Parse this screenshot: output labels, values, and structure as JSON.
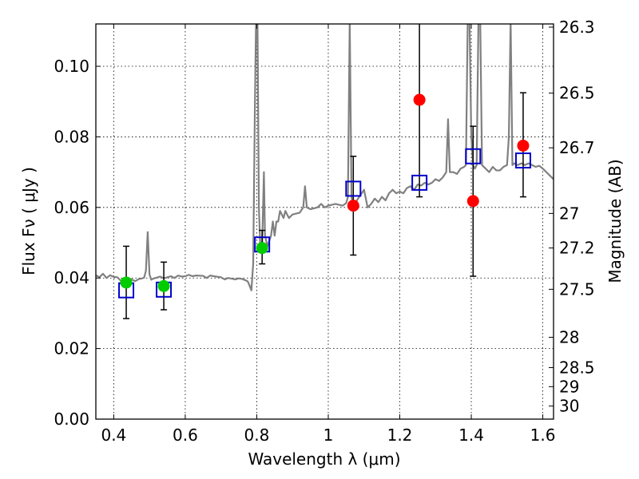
{
  "chart_data": {
    "type": "scatter",
    "xlabel": "Wavelength  λ (μm)",
    "ylabel": "Flux  Fν  ( μJy )",
    "y2label": "Magnitude (AB)",
    "xlim": [
      0.35,
      1.63
    ],
    "ylim": [
      0.0,
      0.112
    ],
    "grid": true,
    "x_ticks": [
      0.4,
      0.6,
      0.8,
      1.0,
      1.2,
      1.4,
      1.6
    ],
    "x_tick_labels": [
      "0.4",
      "0.6",
      "0.8",
      "1",
      "1.2",
      "1.4",
      "1.6"
    ],
    "y_ticks": [
      0.0,
      0.02,
      0.04,
      0.06,
      0.08,
      0.1
    ],
    "y_tick_labels": [
      "0.00",
      "0.02",
      "0.04",
      "0.06",
      "0.08",
      "0.10"
    ],
    "y2_ticks": [
      {
        "label": "26.3",
        "flux": 0.1111
      },
      {
        "label": "26.5",
        "flux": 0.0924
      },
      {
        "label": "26.7",
        "flux": 0.0769
      },
      {
        "label": "27",
        "flux": 0.0583
      },
      {
        "label": "27.2",
        "flux": 0.0485
      },
      {
        "label": "27.5",
        "flux": 0.0368
      },
      {
        "label": "28",
        "flux": 0.0232
      },
      {
        "label": "28.5",
        "flux": 0.0146
      },
      {
        "label": "29",
        "flux": 0.0092
      },
      {
        "label": "30",
        "flux": 0.0037
      }
    ],
    "series": [
      {
        "kind": "line",
        "color": "#808080",
        "points": [
          [
            0.35,
            0.0408
          ],
          [
            0.36,
            0.0402
          ],
          [
            0.37,
            0.0412
          ],
          [
            0.38,
            0.04
          ],
          [
            0.39,
            0.0408
          ],
          [
            0.4,
            0.0403
          ],
          [
            0.41,
            0.0402
          ],
          [
            0.42,
            0.0392
          ],
          [
            0.43,
            0.0397
          ],
          [
            0.44,
            0.04
          ],
          [
            0.45,
            0.0396
          ],
          [
            0.46,
            0.0391
          ],
          [
            0.47,
            0.0397
          ],
          [
            0.48,
            0.0399
          ],
          [
            0.485,
            0.0401
          ],
          [
            0.49,
            0.042
          ],
          [
            0.495,
            0.053
          ],
          [
            0.5,
            0.041
          ],
          [
            0.505,
            0.0395
          ],
          [
            0.51,
            0.0398
          ],
          [
            0.52,
            0.0401
          ],
          [
            0.53,
            0.0404
          ],
          [
            0.54,
            0.0399
          ],
          [
            0.55,
            0.0402
          ],
          [
            0.56,
            0.0405
          ],
          [
            0.57,
            0.04
          ],
          [
            0.58,
            0.0407
          ],
          [
            0.59,
            0.0404
          ],
          [
            0.6,
            0.0405
          ],
          [
            0.61,
            0.0409
          ],
          [
            0.62,
            0.0405
          ],
          [
            0.63,
            0.0407
          ],
          [
            0.65,
            0.0406
          ],
          [
            0.66,
            0.04
          ],
          [
            0.67,
            0.0407
          ],
          [
            0.68,
            0.0405
          ],
          [
            0.7,
            0.0402
          ],
          [
            0.71,
            0.0396
          ],
          [
            0.72,
            0.04
          ],
          [
            0.73,
            0.0398
          ],
          [
            0.74,
            0.0396
          ],
          [
            0.75,
            0.0399
          ],
          [
            0.76,
            0.0397
          ],
          [
            0.77,
            0.0393
          ],
          [
            0.775,
            0.039
          ],
          [
            0.78,
            0.0378
          ],
          [
            0.785,
            0.0365
          ],
          [
            0.79,
            0.044
          ],
          [
            0.795,
            0.09
          ],
          [
            0.798,
            0.113
          ],
          [
            0.802,
            0.113
          ],
          [
            0.806,
            0.06
          ],
          [
            0.81,
            0.048
          ],
          [
            0.815,
            0.049
          ],
          [
            0.82,
            0.07
          ],
          [
            0.823,
            0.052
          ],
          [
            0.83,
            0.049
          ],
          [
            0.84,
            0.052
          ],
          [
            0.845,
            0.056
          ],
          [
            0.85,
            0.052
          ],
          [
            0.855,
            0.056
          ],
          [
            0.86,
            0.056
          ],
          [
            0.865,
            0.059
          ],
          [
            0.87,
            0.058
          ],
          [
            0.875,
            0.057
          ],
          [
            0.88,
            0.059
          ],
          [
            0.89,
            0.057
          ],
          [
            0.9,
            0.058
          ],
          [
            0.92,
            0.0585
          ],
          [
            0.93,
            0.06
          ],
          [
            0.935,
            0.066
          ],
          [
            0.94,
            0.06
          ],
          [
            0.95,
            0.0595
          ],
          [
            0.97,
            0.06
          ],
          [
            0.98,
            0.061
          ],
          [
            0.99,
            0.06
          ],
          [
            1.0,
            0.0605
          ],
          [
            1.02,
            0.061
          ],
          [
            1.04,
            0.0605
          ],
          [
            1.05,
            0.0612
          ],
          [
            1.055,
            0.063
          ],
          [
            1.06,
            0.113
          ],
          [
            1.065,
            0.063
          ],
          [
            1.07,
            0.06
          ],
          [
            1.08,
            0.062
          ],
          [
            1.09,
            0.0635
          ],
          [
            1.1,
            0.065
          ],
          [
            1.11,
            0.06
          ],
          [
            1.12,
            0.061
          ],
          [
            1.13,
            0.0625
          ],
          [
            1.14,
            0.0615
          ],
          [
            1.15,
            0.063
          ],
          [
            1.16,
            0.062
          ],
          [
            1.17,
            0.064
          ],
          [
            1.18,
            0.065
          ],
          [
            1.19,
            0.064
          ],
          [
            1.2,
            0.0645
          ],
          [
            1.21,
            0.064
          ],
          [
            1.22,
            0.0655
          ],
          [
            1.23,
            0.066
          ],
          [
            1.24,
            0.065
          ],
          [
            1.25,
            0.0665
          ],
          [
            1.26,
            0.0662
          ],
          [
            1.27,
            0.067
          ],
          [
            1.28,
            0.0665
          ],
          [
            1.29,
            0.067
          ],
          [
            1.3,
            0.068
          ],
          [
            1.31,
            0.0675
          ],
          [
            1.32,
            0.0685
          ],
          [
            1.33,
            0.07
          ],
          [
            1.335,
            0.085
          ],
          [
            1.34,
            0.07
          ],
          [
            1.35,
            0.07
          ],
          [
            1.36,
            0.0695
          ],
          [
            1.37,
            0.071
          ],
          [
            1.38,
            0.0715
          ],
          [
            1.385,
            0.072
          ],
          [
            1.39,
            0.113
          ],
          [
            1.395,
            0.113
          ],
          [
            1.4,
            0.08
          ],
          [
            1.405,
            0.072
          ],
          [
            1.41,
            0.071
          ],
          [
            1.415,
            0.072
          ],
          [
            1.42,
            0.113
          ],
          [
            1.425,
            0.113
          ],
          [
            1.43,
            0.072
          ],
          [
            1.44,
            0.071
          ],
          [
            1.45,
            0.07
          ],
          [
            1.46,
            0.0715
          ],
          [
            1.47,
            0.0705
          ],
          [
            1.48,
            0.0705
          ],
          [
            1.49,
            0.0715
          ],
          [
            1.5,
            0.072
          ],
          [
            1.505,
            0.08
          ],
          [
            1.51,
            0.113
          ],
          [
            1.515,
            0.072
          ],
          [
            1.52,
            0.0725
          ],
          [
            1.53,
            0.072
          ],
          [
            1.54,
            0.0725
          ],
          [
            1.55,
            0.072
          ],
          [
            1.56,
            0.0725
          ],
          [
            1.57,
            0.072
          ],
          [
            1.58,
            0.0715
          ],
          [
            1.59,
            0.0718
          ],
          [
            1.6,
            0.071
          ],
          [
            1.61,
            0.07
          ],
          [
            1.62,
            0.069
          ],
          [
            1.63,
            0.068
          ]
        ]
      },
      {
        "kind": "open-squares",
        "color": "#0000cc",
        "points": [
          [
            0.435,
            0.0365
          ],
          [
            0.54,
            0.0367
          ],
          [
            0.815,
            0.0495
          ],
          [
            1.07,
            0.0653
          ],
          [
            1.255,
            0.067
          ],
          [
            1.405,
            0.0745
          ],
          [
            1.545,
            0.0733
          ]
        ]
      },
      {
        "kind": "filled-circles",
        "color": "#00cc00",
        "points": [
          [
            0.435,
            0.0387
          ],
          [
            0.54,
            0.0377
          ],
          [
            0.815,
            0.0485
          ]
        ]
      },
      {
        "kind": "filled-circles",
        "color": "#ff0000",
        "points": [
          [
            1.07,
            0.0605
          ],
          [
            1.255,
            0.0905
          ],
          [
            1.405,
            0.0618
          ],
          [
            1.545,
            0.0775
          ]
        ]
      },
      {
        "kind": "errorbars",
        "color": "#000000",
        "bars": [
          {
            "x": 0.435,
            "low": 0.0285,
            "high": 0.049
          },
          {
            "x": 0.54,
            "low": 0.031,
            "high": 0.0445
          },
          {
            "x": 0.815,
            "low": 0.044,
            "high": 0.0535
          },
          {
            "x": 1.07,
            "low": 0.0465,
            "high": 0.0745
          },
          {
            "x": 1.255,
            "low": 0.063,
            "high": 0.113
          },
          {
            "x": 1.405,
            "low": 0.0405,
            "high": 0.083
          },
          {
            "x": 1.545,
            "low": 0.063,
            "high": 0.0925
          }
        ]
      }
    ]
  }
}
